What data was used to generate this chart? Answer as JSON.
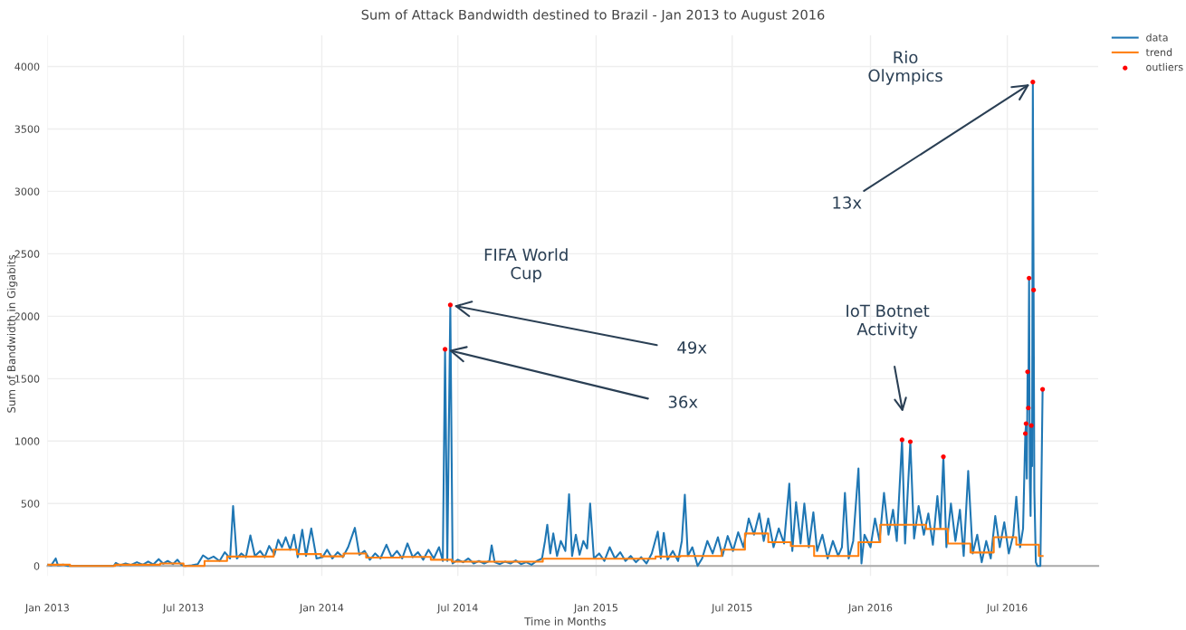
{
  "chart_data": {
    "type": "line",
    "title": "Sum of Attack Bandwidth destined to Brazil - Jan 2013 to August 2016",
    "xlabel": "Time in Months",
    "ylabel": "Sum of Bandwidth in Gigabits",
    "xlim": [
      "2013-01-01",
      "2016-10-30"
    ],
    "ylim": [
      -80,
      4250
    ],
    "xticks": [
      {
        "value": "2013-01-01",
        "label": "Jan 2013"
      },
      {
        "value": "2013-07-01",
        "label": "Jul 2013"
      },
      {
        "value": "2014-01-01",
        "label": "Jan 2014"
      },
      {
        "value": "2014-07-01",
        "label": "Jul 2014"
      },
      {
        "value": "2015-01-01",
        "label": "Jan 2015"
      },
      {
        "value": "2015-07-01",
        "label": "Jul 2015"
      },
      {
        "value": "2016-01-01",
        "label": "Jan 2016"
      },
      {
        "value": "2016-07-01",
        "label": "Jul 2016"
      }
    ],
    "yticks": [
      0,
      500,
      1000,
      1500,
      2000,
      2500,
      3000,
      3500,
      4000
    ],
    "grid": true,
    "legend": "top right",
    "annotations": [
      "Rio\nOlympics",
      {
        "text": "13x",
        "x": "2016-08-04",
        "y": 3875
      },
      "FIFA World\nCup",
      {
        "text": "49x",
        "x": "2014-06-21",
        "y": 2090
      },
      {
        "text": "36x",
        "x": "2014-06-14",
        "y": 1735
      },
      "IoT Botnet\nActivity"
    ],
    "series": [
      {
        "name": "data",
        "type": "line",
        "color": "#1f77b4",
        "marker": "none",
        "x": [
          "2013-01-01",
          "2013-01-06",
          "2013-01-12",
          "2013-01-15",
          "2013-01-22",
          "2013-01-28",
          "2013-03-30",
          "2013-04-02",
          "2013-04-08",
          "2013-04-15",
          "2013-04-22",
          "2013-04-30",
          "2013-05-08",
          "2013-05-15",
          "2013-05-22",
          "2013-05-29",
          "2013-06-04",
          "2013-06-10",
          "2013-06-17",
          "2013-06-23",
          "2013-06-28",
          "2013-07-03",
          "2013-07-12",
          "2013-07-20",
          "2013-07-27",
          "2013-08-03",
          "2013-08-10",
          "2013-08-18",
          "2013-08-25",
          "2013-09-01",
          "2013-09-05",
          "2013-09-10",
          "2013-09-16",
          "2013-09-22",
          "2013-09-28",
          "2013-10-04",
          "2013-10-11",
          "2013-10-17",
          "2013-10-23",
          "2013-10-30",
          "2013-11-04",
          "2013-11-09",
          "2013-11-14",
          "2013-11-20",
          "2013-11-25",
          "2013-11-30",
          "2013-12-06",
          "2013-12-11",
          "2013-12-18",
          "2013-12-25",
          "2014-01-02",
          "2014-01-08",
          "2014-01-15",
          "2014-01-22",
          "2014-01-29",
          "2014-02-05",
          "2014-02-14",
          "2014-02-20",
          "2014-02-27",
          "2014-03-06",
          "2014-03-13",
          "2014-03-20",
          "2014-03-28",
          "2014-04-04",
          "2014-04-11",
          "2014-04-18",
          "2014-04-25",
          "2014-05-02",
          "2014-05-09",
          "2014-05-16",
          "2014-05-23",
          "2014-05-30",
          "2014-06-06",
          "2014-06-11",
          "2014-06-14",
          "2014-06-17",
          "2014-06-21",
          "2014-06-24",
          "2014-07-01",
          "2014-07-08",
          "2014-07-15",
          "2014-07-22",
          "2014-07-29",
          "2014-08-05",
          "2014-08-12",
          "2014-08-15",
          "2014-08-19",
          "2014-08-26",
          "2014-09-02",
          "2014-09-09",
          "2014-09-16",
          "2014-09-23",
          "2014-09-30",
          "2014-10-07",
          "2014-10-14",
          "2014-10-21",
          "2014-10-25",
          "2014-10-28",
          "2014-11-01",
          "2014-11-05",
          "2014-11-10",
          "2014-11-15",
          "2014-11-21",
          "2014-11-26",
          "2014-11-30",
          "2014-12-05",
          "2014-12-10",
          "2014-12-15",
          "2014-12-20",
          "2014-12-24",
          "2014-12-29",
          "2015-01-05",
          "2015-01-12",
          "2015-01-19",
          "2015-01-26",
          "2015-02-02",
          "2015-02-09",
          "2015-02-16",
          "2015-02-23",
          "2015-03-02",
          "2015-03-09",
          "2015-03-16",
          "2015-03-24",
          "2015-03-28",
          "2015-04-01",
          "2015-04-06",
          "2015-04-13",
          "2015-04-20",
          "2015-04-25",
          "2015-04-29",
          "2015-05-03",
          "2015-05-09",
          "2015-05-16",
          "2015-05-22",
          "2015-05-29",
          "2015-06-05",
          "2015-06-12",
          "2015-06-18",
          "2015-06-25",
          "2015-07-02",
          "2015-07-09",
          "2015-07-16",
          "2015-07-23",
          "2015-07-30",
          "2015-08-06",
          "2015-08-12",
          "2015-08-18",
          "2015-08-25",
          "2015-09-01",
          "2015-09-08",
          "2015-09-15",
          "2015-09-19",
          "2015-09-24",
          "2015-09-30",
          "2015-10-05",
          "2015-10-11",
          "2015-10-17",
          "2015-10-22",
          "2015-10-29",
          "2015-11-05",
          "2015-11-12",
          "2015-11-19",
          "2015-11-24",
          "2015-11-28",
          "2015-12-03",
          "2015-12-09",
          "2015-12-16",
          "2015-12-20",
          "2015-12-24",
          "2016-01-01",
          "2016-01-07",
          "2016-01-13",
          "2016-01-19",
          "2016-01-25",
          "2016-01-31",
          "2016-02-05",
          "2016-02-12",
          "2016-02-16",
          "2016-02-23",
          "2016-02-28",
          "2016-03-05",
          "2016-03-12",
          "2016-03-18",
          "2016-03-24",
          "2016-03-30",
          "2016-04-03",
          "2016-04-07",
          "2016-04-11",
          "2016-04-17",
          "2016-04-23",
          "2016-04-29",
          "2016-05-04",
          "2016-05-10",
          "2016-05-16",
          "2016-05-22",
          "2016-05-28",
          "2016-06-03",
          "2016-06-09",
          "2016-06-15",
          "2016-06-21",
          "2016-06-27",
          "2016-07-03",
          "2016-07-09",
          "2016-07-13",
          "2016-07-18",
          "2016-07-22",
          "2016-07-25",
          "2016-07-26",
          "2016-07-27",
          "2016-07-28",
          "2016-07-29",
          "2016-07-30",
          "2016-07-31",
          "2016-08-01",
          "2016-08-02",
          "2016-08-03",
          "2016-08-04",
          "2016-08-05",
          "2016-08-06",
          "2016-08-08",
          "2016-08-10",
          "2016-08-14",
          "2016-08-17"
        ],
        "values": [
          10,
          5,
          60,
          5,
          10,
          0,
          0,
          25,
          5,
          20,
          8,
          30,
          10,
          35,
          12,
          55,
          18,
          40,
          15,
          50,
          10,
          0,
          5,
          15,
          85,
          55,
          75,
          40,
          110,
          60,
          480,
          60,
          100,
          70,
          245,
          80,
          120,
          70,
          160,
          90,
          210,
          150,
          230,
          130,
          250,
          70,
          290,
          80,
          300,
          60,
          70,
          130,
          60,
          110,
          70,
          150,
          305,
          90,
          120,
          50,
          100,
          60,
          170,
          70,
          120,
          60,
          180,
          70,
          110,
          50,
          130,
          60,
          150,
          40,
          1735,
          40,
          2090,
          20,
          50,
          30,
          60,
          20,
          40,
          20,
          40,
          165,
          30,
          15,
          35,
          20,
          45,
          15,
          30,
          10,
          40,
          60,
          200,
          330,
          100,
          260,
          80,
          200,
          120,
          575,
          80,
          250,
          90,
          200,
          140,
          500,
          60,
          100,
          40,
          150,
          60,
          110,
          40,
          80,
          30,
          70,
          20,
          100,
          275,
          60,
          265,
          50,
          120,
          40,
          200,
          570,
          80,
          150,
          0,
          60,
          200,
          100,
          230,
          80,
          240,
          120,
          270,
          150,
          380,
          250,
          420,
          200,
          380,
          150,
          300,
          180,
          660,
          120,
          510,
          180,
          500,
          150,
          430,
          120,
          250,
          60,
          200,
          80,
          150,
          585,
          60,
          200,
          780,
          20,
          250,
          150,
          380,
          200,
          585,
          250,
          450,
          200,
          1010,
          180,
          995,
          220,
          480,
          250,
          420,
          170,
          560,
          300,
          875,
          150,
          500,
          200,
          450,
          80,
          760,
          100,
          250,
          30,
          200,
          60,
          400,
          150,
          350,
          100,
          250,
          555,
          150,
          300,
          1060,
          1140,
          700,
          1555,
          1265,
          2305,
          700,
          400,
          1125,
          800,
          3875,
          2210,
          600,
          30,
          0,
          0,
          1415
        ]
      },
      {
        "name": "trend",
        "type": "step",
        "color": "#ff7f0e",
        "x": [
          "2013-01-01",
          "2013-01-31",
          "2013-04-01",
          "2013-05-31",
          "2013-07-01",
          "2013-07-29",
          "2013-08-28",
          "2013-10-29",
          "2013-11-29",
          "2013-12-31",
          "2014-01-30",
          "2014-03-01",
          "2014-04-15",
          "2014-05-26",
          "2014-06-23",
          "2014-10-22",
          "2015-03-21",
          "2015-04-23",
          "2015-06-17",
          "2015-07-18",
          "2015-08-18",
          "2015-09-17",
          "2015-10-18",
          "2015-12-16",
          "2016-01-14",
          "2016-03-15",
          "2016-04-13",
          "2016-05-13",
          "2016-06-13",
          "2016-07-13",
          "2016-08-12",
          "2016-08-17"
        ],
        "values": [
          10,
          0,
          10,
          20,
          0,
          40,
          75,
          130,
          95,
          77,
          100,
          67,
          72,
          50,
          35,
          58,
          75,
          80,
          130,
          260,
          190,
          160,
          80,
          190,
          330,
          296,
          180,
          108,
          230,
          170,
          80,
          80
        ]
      },
      {
        "name": "outliers",
        "type": "scatter",
        "color": "#ff0000",
        "marker": "circle",
        "x": [
          "2014-06-14",
          "2014-06-21",
          "2016-02-12",
          "2016-02-23",
          "2016-04-07",
          "2016-07-25",
          "2016-07-26",
          "2016-07-28",
          "2016-07-29",
          "2016-07-30",
          "2016-08-02",
          "2016-08-04",
          "2016-08-05",
          "2016-08-17"
        ],
        "values": [
          1735,
          2090,
          1010,
          995,
          875,
          1060,
          1140,
          1555,
          1265,
          2305,
          1125,
          3875,
          2210,
          1415
        ]
      }
    ]
  }
}
